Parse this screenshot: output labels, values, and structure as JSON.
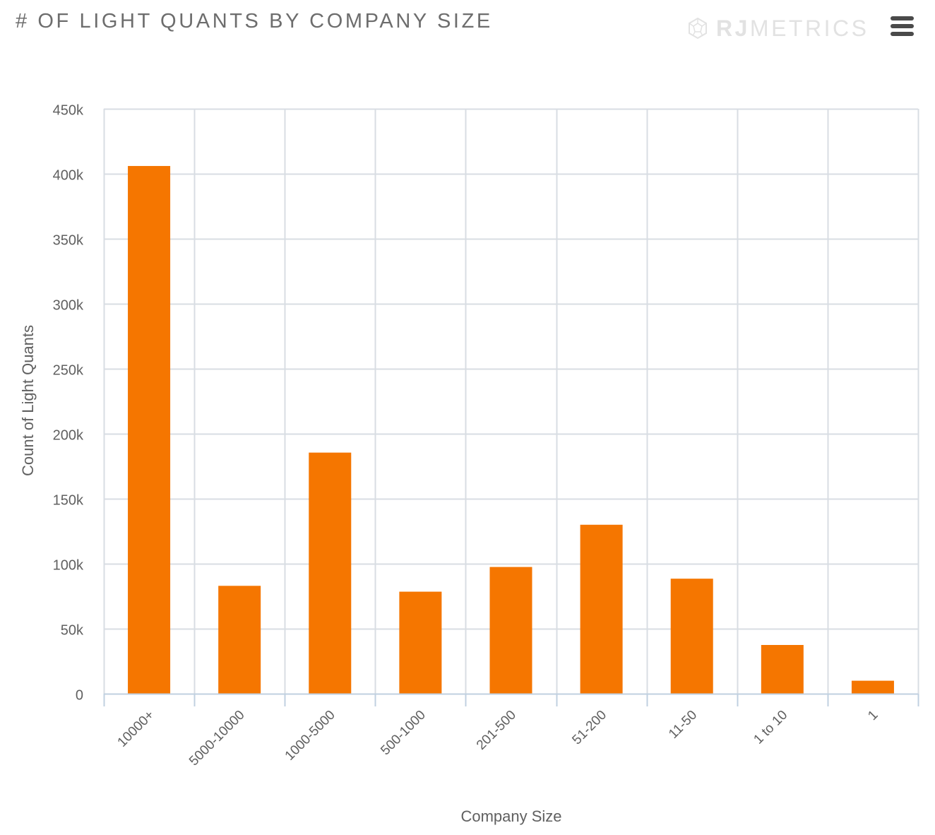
{
  "header": {
    "title": "# OF LIGHT QUANTS BY COMPANY SIZE",
    "brand_bold": "RJ",
    "brand_light": "METRICS",
    "brand_icon": "rjmetrics-logo-icon",
    "menu_icon": "hamburger-menu-icon"
  },
  "colors": {
    "bar": "#f57600",
    "grid": "#d8dde3",
    "axis": "#c0d0e0",
    "text": "#606060",
    "title": "#6d6d6d",
    "brand": "#e2e2e2",
    "menu": "#4a4a4a"
  },
  "chart_data": {
    "type": "bar",
    "title": "# OF LIGHT QUANTS BY COMPANY SIZE",
    "xlabel": "Company Size",
    "ylabel": "Count of Light Quants",
    "categories": [
      "10000+",
      "5000-10000",
      "1000-5000",
      "500-1000",
      "201-500",
      "51-200",
      "11-50",
      "1 to 10",
      "1"
    ],
    "values": [
      406000,
      83000,
      185500,
      78500,
      97500,
      130000,
      88500,
      37500,
      10000
    ],
    "ylim": [
      0,
      450000
    ],
    "yticks": [
      0,
      50000,
      100000,
      150000,
      200000,
      250000,
      300000,
      350000,
      400000,
      450000
    ],
    "ytick_labels": [
      "0",
      "50k",
      "100k",
      "150k",
      "200k",
      "250k",
      "300k",
      "350k",
      "400k",
      "450k"
    ],
    "grid": "both",
    "legend": "none"
  }
}
